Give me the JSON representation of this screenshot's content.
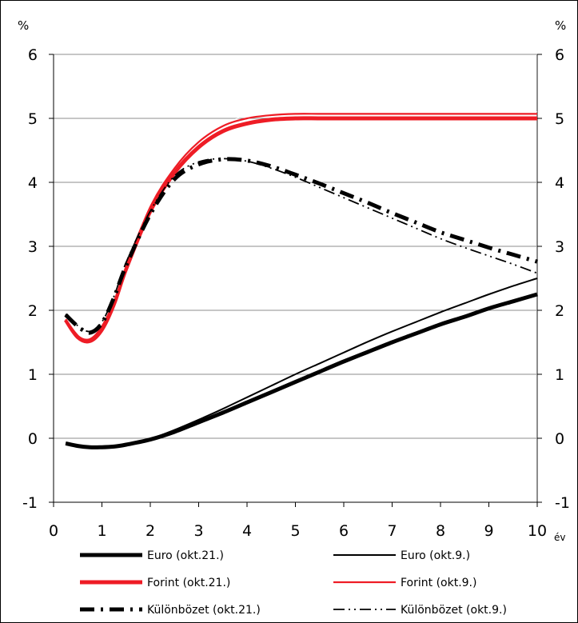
{
  "chart_data": {
    "type": "line",
    "y_unit_left": "%",
    "y_unit_right": "%",
    "x_unit": "év",
    "xlim": [
      0,
      10
    ],
    "ylim": [
      -1,
      6
    ],
    "x_ticks": [
      0,
      1,
      2,
      3,
      4,
      5,
      6,
      7,
      8,
      9,
      10
    ],
    "y_ticks": [
      -1,
      0,
      1,
      2,
      3,
      4,
      5,
      6
    ],
    "x_tick_labels": [
      "0",
      "1",
      "2",
      "3",
      "4",
      "5",
      "6",
      "7",
      "8",
      "9",
      "10"
    ],
    "y_tick_labels": [
      "-1",
      "0",
      "1",
      "2",
      "3",
      "4",
      "5",
      "6"
    ],
    "grid": "horizontal",
    "legend_position": "bottom",
    "series": [
      {
        "name": "Euro (okt.21.)",
        "color": "#000000",
        "style": "solid-thick",
        "x": [
          0.25,
          0.5,
          0.75,
          1,
          1.25,
          1.5,
          2,
          2.5,
          3,
          3.5,
          4,
          4.5,
          5,
          5.5,
          6,
          6.5,
          7,
          7.5,
          8,
          8.5,
          9,
          9.5,
          10
        ],
        "y": [
          -0.08,
          -0.12,
          -0.14,
          -0.14,
          -0.13,
          -0.1,
          -0.02,
          0.1,
          0.25,
          0.4,
          0.56,
          0.72,
          0.88,
          1.04,
          1.2,
          1.35,
          1.5,
          1.64,
          1.78,
          1.9,
          2.03,
          2.14,
          2.25
        ]
      },
      {
        "name": "Euro (okt.9.)",
        "color": "#000000",
        "style": "solid-thin",
        "x": [
          0.25,
          0.5,
          0.75,
          1,
          1.25,
          1.5,
          2,
          2.5,
          3,
          3.5,
          4,
          4.5,
          5,
          5.5,
          6,
          6.5,
          7,
          7.5,
          8,
          8.5,
          9,
          9.5,
          10
        ],
        "y": [
          -0.08,
          -0.12,
          -0.14,
          -0.14,
          -0.13,
          -0.1,
          -0.01,
          0.13,
          0.29,
          0.46,
          0.64,
          0.82,
          1.0,
          1.17,
          1.34,
          1.51,
          1.67,
          1.82,
          1.97,
          2.11,
          2.25,
          2.38,
          2.5
        ]
      },
      {
        "name": "Forint (okt.21.)",
        "color": "#ee1c25",
        "style": "solid-thick",
        "x": [
          0.25,
          0.5,
          0.75,
          1,
          1.25,
          1.5,
          2,
          2.5,
          3,
          3.5,
          4,
          4.5,
          5,
          5.5,
          6,
          7,
          8,
          9,
          10
        ],
        "y": [
          1.85,
          1.58,
          1.52,
          1.7,
          2.1,
          2.65,
          3.55,
          4.15,
          4.55,
          4.8,
          4.92,
          4.98,
          5.0,
          5.0,
          5.0,
          5.0,
          5.0,
          5.0,
          5.0
        ]
      },
      {
        "name": "Forint (okt.9.)",
        "color": "#ee1c25",
        "style": "solid-medium",
        "x": [
          0.25,
          0.5,
          0.75,
          1,
          1.25,
          1.5,
          2,
          2.5,
          3,
          3.5,
          4,
          4.5,
          5,
          5.5,
          6,
          7,
          8,
          9,
          10
        ],
        "y": [
          1.86,
          1.6,
          1.55,
          1.75,
          2.15,
          2.7,
          3.62,
          4.22,
          4.63,
          4.88,
          5.0,
          5.05,
          5.07,
          5.07,
          5.07,
          5.07,
          5.07,
          5.07,
          5.07
        ]
      },
      {
        "name": "Különbözet (okt.21.)",
        "color": "#000000",
        "style": "long-dash-dot-thick",
        "x": [
          0.25,
          0.5,
          0.75,
          1,
          1.25,
          1.5,
          2,
          2.5,
          3,
          3.5,
          4,
          4.5,
          5,
          5.5,
          6,
          6.5,
          7,
          7.5,
          8,
          8.5,
          9,
          9.5,
          10
        ],
        "y": [
          1.93,
          1.75,
          1.65,
          1.8,
          2.2,
          2.7,
          3.5,
          4.05,
          4.28,
          4.36,
          4.34,
          4.25,
          4.12,
          3.98,
          3.83,
          3.68,
          3.52,
          3.37,
          3.22,
          3.1,
          2.98,
          2.87,
          2.76
        ]
      },
      {
        "name": "Különbözet (okt.9.)",
        "color": "#000000",
        "style": "dash-dot-dot-thin",
        "x": [
          0.25,
          0.5,
          0.75,
          1,
          1.25,
          1.5,
          2,
          2.5,
          3,
          3.5,
          4,
          4.5,
          5,
          5.5,
          6,
          6.5,
          7,
          7.5,
          8,
          8.5,
          9,
          9.5,
          10
        ],
        "y": [
          1.94,
          1.76,
          1.67,
          1.82,
          2.22,
          2.75,
          3.55,
          4.1,
          4.32,
          4.37,
          4.33,
          4.22,
          4.08,
          3.92,
          3.76,
          3.6,
          3.44,
          3.28,
          3.12,
          2.98,
          2.85,
          2.72,
          2.58
        ]
      }
    ]
  }
}
